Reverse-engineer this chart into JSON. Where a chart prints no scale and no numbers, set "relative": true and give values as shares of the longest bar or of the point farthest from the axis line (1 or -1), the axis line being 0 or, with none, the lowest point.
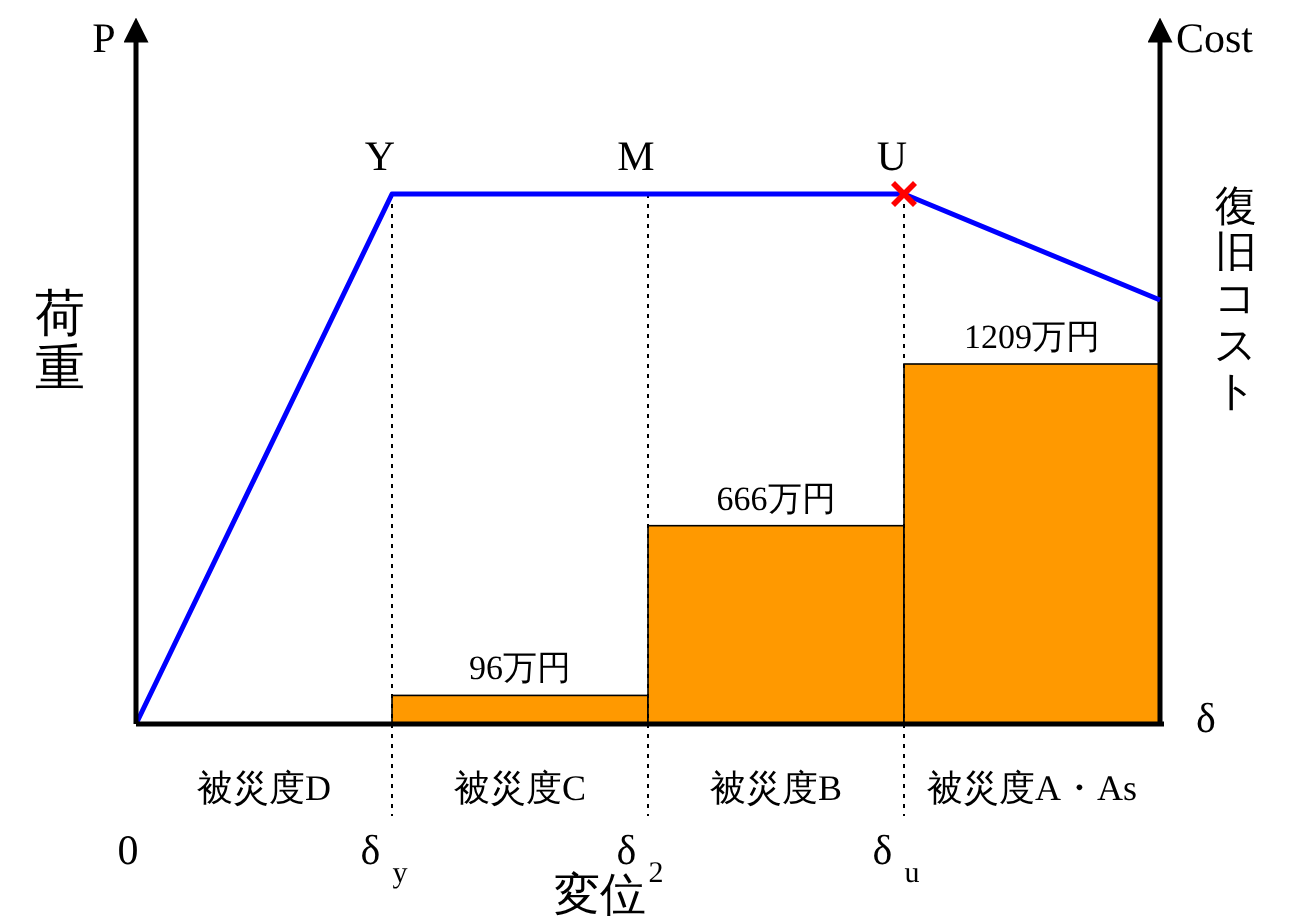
{
  "chart_data": [
    {
      "type": "line",
      "relative": true,
      "categories": [
        "0",
        "δ$_{y}$",
        "δ$_{2}$",
        "δ$_{u}$",
        null
      ],
      "grid": "x",
      "xlabel": "変位",
      "ylabel": "荷重",
      "series": [
        {
          "color": "#0000ff",
          "values": [
            0,
            1,
            1,
            1,
            0.8
          ]
        },
        {
          "type": "scatter",
          "color": "#ff0000",
          "marker": "cross",
          "values": [
            null,
            null,
            null,
            1,
            null
          ]
        }
      ],
      "annotations": [
        "P",
        "δ",
        "被災度D",
        "被災度C",
        "被災度B",
        "被災度A・As",
        {
          "text": "Y",
          "x": "δ$_{y}$",
          "y": 1
        },
        {
          "text": "M",
          "x": "δ$_{2}$",
          "y": 1
        },
        {
          "text": "U",
          "x": "δ$_{u}$",
          "y": 1
        }
      ]
    },
    {
      "type": "bar",
      "categories": [
        null,
        null,
        null,
        null,
        null
      ],
      "y2label": "復旧コスト",
      "series": [
        {
          "axis": "y2",
          "color": "#ff9900",
          "values": [
            null,
            96,
            666,
            1209,
            null
          ],
          "value_labels": [
            null,
            "96万円",
            "666万円",
            "1209万円",
            null
          ]
        }
      ],
      "annotations": [
        "Cost"
      ]
    }
  ]
}
